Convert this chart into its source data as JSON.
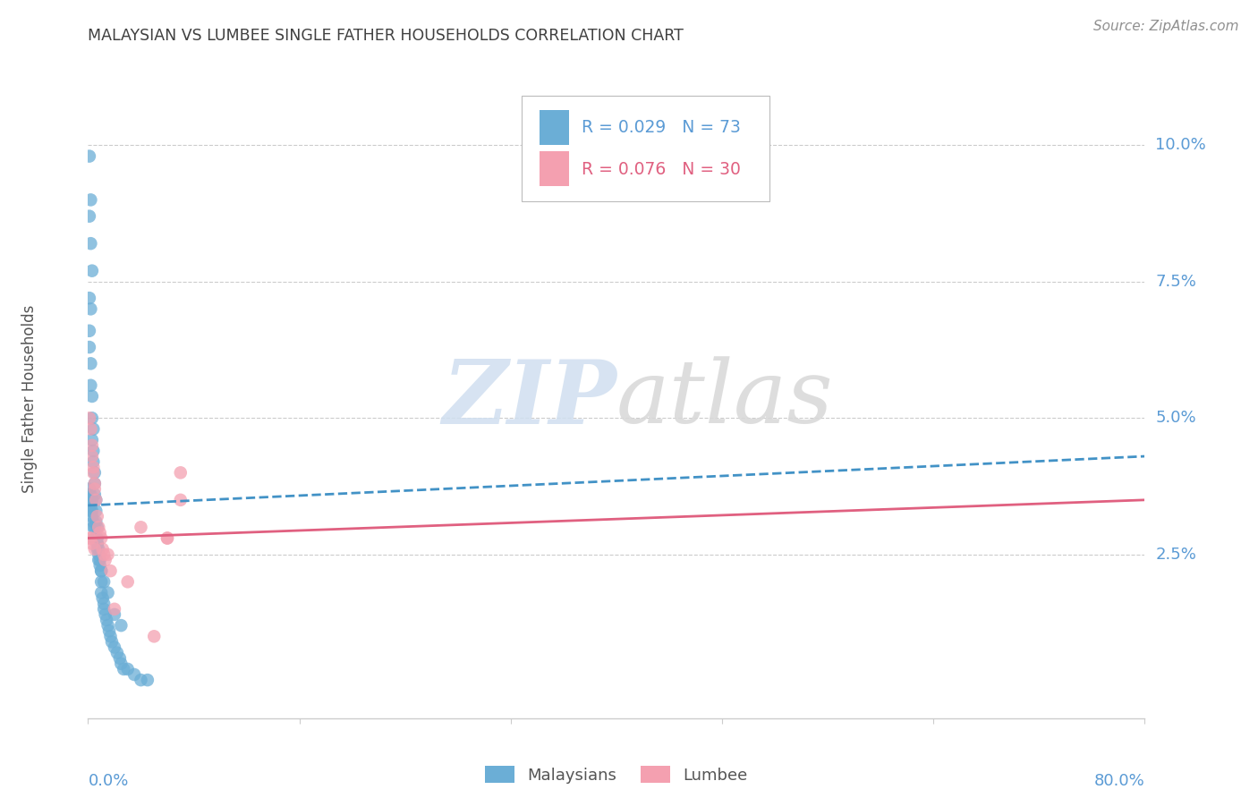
{
  "title": "MALAYSIAN VS LUMBEE SINGLE FATHER HOUSEHOLDS CORRELATION CHART",
  "source": "Source: ZipAtlas.com",
  "ylabel": "Single Father Households",
  "ytick_labels": [
    "2.5%",
    "5.0%",
    "7.5%",
    "10.0%"
  ],
  "ytick_values": [
    0.025,
    0.05,
    0.075,
    0.1
  ],
  "xlim": [
    0.0,
    0.8
  ],
  "ylim": [
    -0.005,
    0.112
  ],
  "blue_color": "#6baed6",
  "pink_color": "#f4a0b0",
  "blue_line_color": "#4292c6",
  "pink_line_color": "#e06080",
  "axis_label_color": "#5b9bd5",
  "title_color": "#404040",
  "watermark_zip": "ZIP",
  "watermark_atlas": "atlas",
  "malaysian_x": [
    0.001,
    0.002,
    0.001,
    0.002,
    0.003,
    0.001,
    0.002,
    0.001,
    0.001,
    0.002,
    0.002,
    0.003,
    0.003,
    0.004,
    0.003,
    0.004,
    0.004,
    0.005,
    0.005,
    0.005,
    0.006,
    0.006,
    0.006,
    0.007,
    0.007,
    0.007,
    0.008,
    0.008,
    0.009,
    0.01,
    0.01,
    0.01,
    0.011,
    0.012,
    0.012,
    0.013,
    0.014,
    0.015,
    0.016,
    0.017,
    0.018,
    0.02,
    0.022,
    0.024,
    0.025,
    0.027,
    0.03,
    0.035,
    0.04,
    0.045,
    0.001,
    0.001,
    0.001,
    0.002,
    0.002,
    0.002,
    0.003,
    0.003,
    0.003,
    0.004,
    0.004,
    0.005,
    0.005,
    0.006,
    0.007,
    0.007,
    0.008,
    0.009,
    0.01,
    0.012,
    0.015,
    0.02,
    0.025
  ],
  "malaysian_y": [
    0.098,
    0.09,
    0.087,
    0.082,
    0.077,
    0.072,
    0.07,
    0.066,
    0.063,
    0.06,
    0.056,
    0.054,
    0.05,
    0.048,
    0.046,
    0.044,
    0.042,
    0.04,
    0.038,
    0.036,
    0.035,
    0.033,
    0.031,
    0.03,
    0.028,
    0.027,
    0.026,
    0.024,
    0.023,
    0.022,
    0.02,
    0.018,
    0.017,
    0.016,
    0.015,
    0.014,
    0.013,
    0.012,
    0.011,
    0.01,
    0.009,
    0.008,
    0.007,
    0.006,
    0.005,
    0.004,
    0.004,
    0.003,
    0.002,
    0.002,
    0.037,
    0.036,
    0.035,
    0.036,
    0.034,
    0.033,
    0.035,
    0.033,
    0.032,
    0.031,
    0.03,
    0.03,
    0.028,
    0.028,
    0.027,
    0.026,
    0.025,
    0.024,
    0.022,
    0.02,
    0.018,
    0.014,
    0.012
  ],
  "lumbee_x": [
    0.001,
    0.002,
    0.003,
    0.003,
    0.004,
    0.004,
    0.005,
    0.005,
    0.006,
    0.007,
    0.008,
    0.009,
    0.01,
    0.011,
    0.012,
    0.013,
    0.015,
    0.017,
    0.02,
    0.03,
    0.04,
    0.05,
    0.06,
    0.07,
    0.001,
    0.002,
    0.003,
    0.005,
    0.06,
    0.07
  ],
  "lumbee_y": [
    0.05,
    0.048,
    0.045,
    0.043,
    0.041,
    0.04,
    0.038,
    0.037,
    0.035,
    0.032,
    0.03,
    0.029,
    0.028,
    0.026,
    0.025,
    0.024,
    0.025,
    0.022,
    0.015,
    0.02,
    0.03,
    0.01,
    0.028,
    0.04,
    0.028,
    0.028,
    0.027,
    0.026,
    0.028,
    0.035
  ],
  "blue_line_x": [
    0.0,
    0.8
  ],
  "blue_line_y": [
    0.034,
    0.043
  ],
  "pink_line_x": [
    0.0,
    0.8
  ],
  "pink_line_y": [
    0.028,
    0.035
  ]
}
